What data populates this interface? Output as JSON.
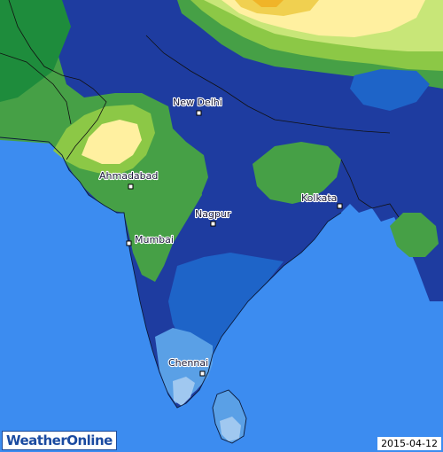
{
  "map": {
    "colors": {
      "ocean": "#3c8cf0",
      "dark_blue": "#1e3ca0",
      "mid_blue": "#1e64c8",
      "light_blue": "#5aa0e6",
      "pale_blue": "#a0c8f0",
      "dark_green": "#1e8c3c",
      "green": "#46a046",
      "light_green": "#8cc846",
      "yellow_green": "#c8e678",
      "pale_yellow": "#fff0a0",
      "yellow": "#f0d050",
      "orange": "#f0b428"
    },
    "cities": [
      {
        "name": "New Delhi"
      },
      {
        "name": "Ahmadabad"
      },
      {
        "name": "Kolkata"
      },
      {
        "name": "Nagpur"
      },
      {
        "name": "Mumbai"
      },
      {
        "name": "Chennai"
      }
    ]
  },
  "brand": {
    "logo_part1": "Weather",
    "logo_part2": "Online"
  },
  "date": "2015-04-12"
}
